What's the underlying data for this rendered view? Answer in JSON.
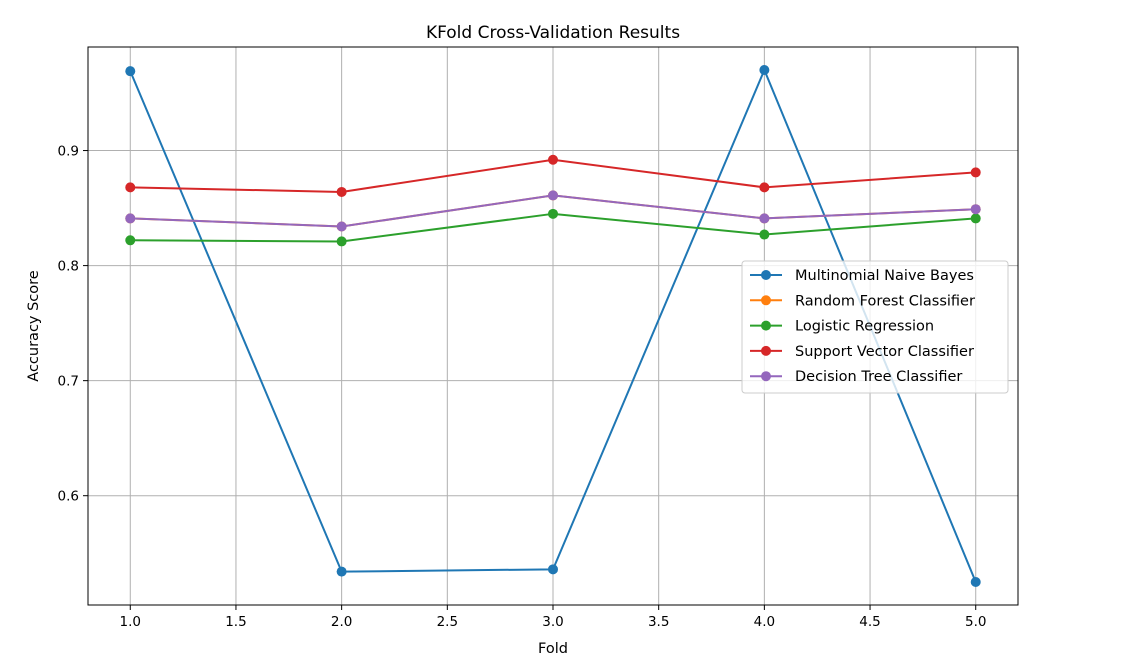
{
  "chart_data": {
    "type": "line",
    "title": "KFold Cross-Validation Results",
    "xlabel": "Fold",
    "ylabel": "Accuracy Score",
    "xlim": [
      0.8,
      5.2
    ],
    "ylim": [
      0.505,
      0.99
    ],
    "xticks": [
      1.0,
      1.5,
      2.0,
      2.5,
      3.0,
      3.5,
      4.0,
      4.5,
      5.0
    ],
    "xtick_labels": [
      "1.0",
      "1.5",
      "2.0",
      "2.5",
      "3.0",
      "3.5",
      "4.0",
      "4.5",
      "5.0"
    ],
    "yticks": [
      0.6,
      0.7,
      0.8,
      0.9
    ],
    "ytick_labels": [
      "0.6",
      "0.7",
      "0.8",
      "0.9"
    ],
    "grid": true,
    "legend_position": "center-right",
    "x": [
      1,
      2,
      3,
      4,
      5
    ],
    "series": [
      {
        "name": "Multinomial Naive Bayes",
        "color": "#1f77b4",
        "values": [
          0.969,
          0.534,
          0.536,
          0.97,
          0.525
        ]
      },
      {
        "name": "Random Forest Classifier",
        "color": "#ff7f0e",
        "values": [
          0.841,
          0.834,
          0.861,
          0.841,
          0.849
        ]
      },
      {
        "name": "Logistic Regression",
        "color": "#2ca02c",
        "values": [
          0.822,
          0.821,
          0.845,
          0.827,
          0.841
        ]
      },
      {
        "name": "Support Vector Classifier",
        "color": "#d62728",
        "values": [
          0.868,
          0.864,
          0.892,
          0.868,
          0.881
        ]
      },
      {
        "name": "Decision Tree Classifier",
        "color": "#9467bd",
        "values": [
          0.841,
          0.834,
          0.861,
          0.841,
          0.849
        ]
      }
    ]
  }
}
